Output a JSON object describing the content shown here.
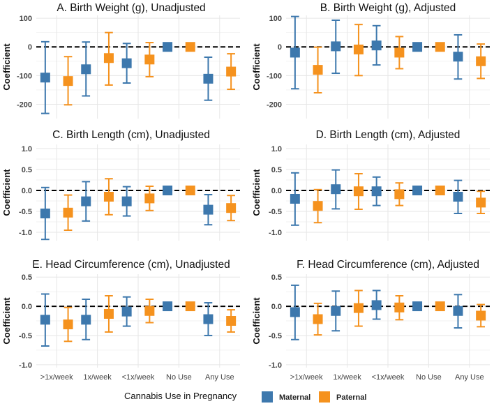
{
  "chart_data": [
    {
      "type": "errorbar",
      "title": "A. Birth Weight (g), Unadjusted",
      "ylabel": "Coefficient",
      "ylim": [
        -250,
        110
      ],
      "yticks": [
        -200,
        -100,
        0,
        100
      ],
      "categories": [
        ">1x/week",
        "1x/week",
        "<1x/week",
        "No Use",
        "Any Use"
      ],
      "series": [
        {
          "name": "Maternal",
          "estimates": [
            -107,
            -78,
            -57,
            0,
            -111
          ],
          "lower": [
            -232,
            -171,
            -126,
            0,
            -186
          ],
          "upper": [
            18,
            17,
            12,
            0,
            -36
          ]
        },
        {
          "name": "Paternal",
          "estimates": [
            -119,
            -39,
            -44,
            0,
            -86
          ],
          "lower": [
            -202,
            -133,
            -104,
            0,
            -148
          ],
          "upper": [
            -34,
            50,
            15,
            0,
            -24
          ]
        }
      ]
    },
    {
      "type": "errorbar",
      "title": "B. Birth Weight (g), Adjusted",
      "ylabel": "Coefficient",
      "ylim": [
        -250,
        110
      ],
      "yticks": [
        -200,
        -100,
        0,
        100
      ],
      "categories": [
        ">1x/week",
        "1x/week",
        "<1x/week",
        "No Use",
        "Any Use"
      ],
      "series": [
        {
          "name": "Maternal",
          "estimates": [
            -20,
            2,
            5,
            0,
            -34
          ],
          "lower": [
            -146,
            -92,
            -63,
            0,
            -112
          ],
          "upper": [
            106,
            93,
            74,
            0,
            42
          ]
        },
        {
          "name": "Paternal",
          "estimates": [
            -80,
            -9,
            -20,
            0,
            -50
          ],
          "lower": [
            -160,
            -100,
            -76,
            0,
            -110
          ],
          "upper": [
            -1,
            78,
            36,
            0,
            10
          ]
        }
      ]
    },
    {
      "type": "errorbar",
      "title": "C. Birth Length (cm), Unadjusted",
      "ylabel": "Coefficient",
      "ylim": [
        -1.2,
        1.1
      ],
      "yticks": [
        -1.0,
        -0.5,
        0.0,
        0.5,
        1.0
      ],
      "categories": [
        ">1x/week",
        "1x/week",
        "<1x/week",
        "No Use",
        "Any Use"
      ],
      "series": [
        {
          "name": "Maternal",
          "estimates": [
            -0.55,
            -0.26,
            -0.26,
            0,
            -0.46
          ],
          "lower": [
            -1.17,
            -0.73,
            -0.61,
            0,
            -0.82
          ],
          "upper": [
            0.07,
            0.21,
            0.09,
            0,
            -0.1
          ]
        },
        {
          "name": "Paternal",
          "estimates": [
            -0.53,
            -0.15,
            -0.19,
            0,
            -0.42
          ],
          "lower": [
            -0.95,
            -0.58,
            -0.48,
            0,
            -0.72
          ],
          "upper": [
            -0.11,
            0.28,
            0.1,
            0,
            -0.12
          ]
        }
      ]
    },
    {
      "type": "errorbar",
      "title": "D. Birth Length (cm), Adjusted",
      "ylabel": "Coefficient",
      "ylim": [
        -1.2,
        1.1
      ],
      "yticks": [
        -1.0,
        -0.5,
        0.0,
        0.5,
        1.0
      ],
      "categories": [
        ">1x/week",
        "1x/week",
        "<1x/week",
        "No Use",
        "Any Use"
      ],
      "series": [
        {
          "name": "Maternal",
          "estimates": [
            -0.2,
            0.03,
            -0.02,
            0,
            -0.15
          ],
          "lower": [
            -0.83,
            -0.44,
            -0.36,
            0,
            -0.55
          ],
          "upper": [
            0.42,
            0.49,
            0.32,
            0,
            0.24
          ]
        },
        {
          "name": "Paternal",
          "estimates": [
            -0.37,
            -0.02,
            -0.09,
            0,
            -0.29
          ],
          "lower": [
            -0.77,
            -0.45,
            -0.36,
            0,
            -0.55
          ],
          "upper": [
            0.02,
            0.4,
            0.18,
            0,
            -0.02
          ]
        }
      ]
    },
    {
      "type": "errorbar",
      "title": "E. Head Circumference (cm), Unadjusted",
      "ylabel": "Coefficient",
      "ylim": [
        -1.05,
        0.55
      ],
      "yticks": [
        -1.0,
        -0.5,
        0.0,
        0.5
      ],
      "categories": [
        ">1x/week",
        "1x/week",
        "<1x/week",
        "No Use",
        "Any Use"
      ],
      "series": [
        {
          "name": "Maternal",
          "estimates": [
            -0.23,
            -0.23,
            -0.09,
            0,
            -0.22
          ],
          "lower": [
            -0.68,
            -0.57,
            -0.34,
            0,
            -0.5
          ],
          "upper": [
            0.21,
            0.12,
            0.16,
            0,
            0.06
          ]
        },
        {
          "name": "Paternal",
          "estimates": [
            -0.31,
            -0.13,
            -0.08,
            0,
            -0.25
          ],
          "lower": [
            -0.6,
            -0.44,
            -0.28,
            0,
            -0.44
          ],
          "upper": [
            -0.02,
            0.18,
            0.12,
            0,
            -0.06
          ]
        }
      ]
    },
    {
      "type": "errorbar",
      "title": "F. Head Circumference (cm), Adjusted",
      "ylabel": "Coefficient",
      "ylim": [
        -1.05,
        0.55
      ],
      "yticks": [
        -1.0,
        -0.5,
        0.0,
        0.5
      ],
      "categories": [
        ">1x/week",
        "1x/week",
        "<1x/week",
        "No Use",
        "Any Use"
      ],
      "series": [
        {
          "name": "Maternal",
          "estimates": [
            -0.1,
            -0.08,
            0.02,
            0,
            -0.08
          ],
          "lower": [
            -0.57,
            -0.42,
            -0.22,
            0,
            -0.37
          ],
          "upper": [
            0.36,
            0.26,
            0.27,
            0,
            0.2
          ]
        },
        {
          "name": "Paternal",
          "estimates": [
            -0.22,
            -0.03,
            -0.02,
            0,
            -0.16
          ],
          "lower": [
            -0.49,
            -0.34,
            -0.23,
            0,
            -0.35
          ],
          "upper": [
            0.05,
            0.27,
            0.18,
            0,
            0.03
          ]
        }
      ]
    }
  ],
  "legend": {
    "title": "Cannabis Use in Pregnancy",
    "items": [
      {
        "label": "Maternal",
        "color": "#3d78ad"
      },
      {
        "label": "Paternal",
        "color": "#f5921e"
      }
    ]
  }
}
